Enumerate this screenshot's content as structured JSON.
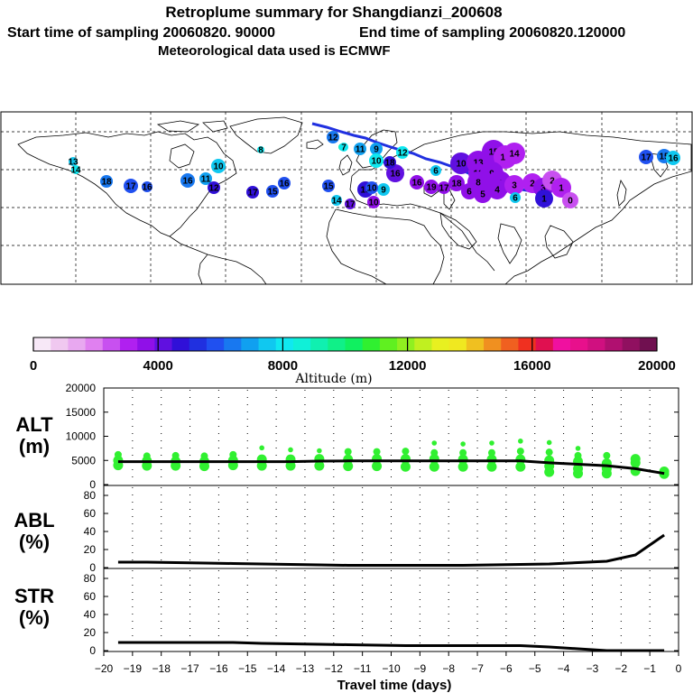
{
  "header": {
    "title": "Retroplume summary for Shangdianzi_200608",
    "start_label": "Start time of sampling 20060820. 90000",
    "end_label": "End time of sampling 20060820.120000",
    "met_label": "Meteorological data used is ECMWF"
  },
  "colorbar": {
    "colors": [
      "#f7e8f7",
      "#f0c8f0",
      "#e8a8f0",
      "#e080f0",
      "#c850f0",
      "#b020f0",
      "#9010e8",
      "#6010e0",
      "#3010d8",
      "#2030e0",
      "#2050f0",
      "#1878f0",
      "#10a0f0",
      "#10c8f0",
      "#10e8f0",
      "#10f0d8",
      "#10f0b0",
      "#10f088",
      "#10f060",
      "#30f030",
      "#60f020",
      "#90f020",
      "#c0f020",
      "#e8f020",
      "#f0e820",
      "#f0c020",
      "#f09020",
      "#f06020",
      "#f03020",
      "#e01050",
      "#f010a0",
      "#e8108c",
      "#d01080",
      "#b01070",
      "#901060",
      "#701050"
    ],
    "tick_labels": [
      "0",
      "4000",
      "8000",
      "12000",
      "16000",
      "20000"
    ],
    "title": "Altitude (m)"
  },
  "map": {
    "bubbles": [
      {
        "label": "13",
        "color": "#10c8f0"
      },
      {
        "label": "14",
        "color": "#10e8f0"
      },
      {
        "label": "18",
        "color": "#1878f0"
      },
      {
        "label": "17",
        "color": "#2050f0"
      },
      {
        "label": "16",
        "color": "#2050f0"
      },
      {
        "label": "16",
        "color": "#1878f0"
      },
      {
        "label": "11",
        "color": "#10a0f0"
      },
      {
        "label": "12",
        "color": "#3010d8"
      },
      {
        "label": "10",
        "color": "#10c8f0"
      },
      {
        "label": "8",
        "color": "#10e8f0"
      },
      {
        "label": "17",
        "color": "#3010d8"
      },
      {
        "label": "15",
        "color": "#2050f0"
      },
      {
        "label": "16",
        "color": "#2050f0"
      },
      {
        "label": "8",
        "color": "#10f0b0"
      },
      {
        "label": "12",
        "color": "#1878f0"
      },
      {
        "label": "7",
        "color": "#10e8f0"
      },
      {
        "label": "11",
        "color": "#10a0f0"
      },
      {
        "label": "9",
        "color": "#10a0f0"
      },
      {
        "label": "10",
        "color": "#10e8f0"
      },
      {
        "label": "12",
        "color": "#10e8f0"
      },
      {
        "label": "16",
        "color": "#6010e0"
      },
      {
        "label": "18",
        "color": "#3010d8"
      },
      {
        "label": "19",
        "color": "#3010d8"
      },
      {
        "label": "9",
        "color": "#10c8f0"
      },
      {
        "label": "15",
        "color": "#2050f0"
      },
      {
        "label": "14",
        "color": "#10c8f0"
      },
      {
        "label": "17",
        "color": "#6010e0"
      },
      {
        "label": "10",
        "color": "#9010e8"
      },
      {
        "label": "6",
        "color": "#10c8f0"
      },
      {
        "label": "16",
        "color": "#9010e8"
      },
      {
        "label": "19",
        "color": "#9010e8"
      },
      {
        "label": "17",
        "color": "#9010e8"
      },
      {
        "label": "18",
        "color": "#9010e8"
      },
      {
        "label": "10",
        "color": "#6010e0"
      },
      {
        "label": "13",
        "color": "#9010e8"
      },
      {
        "label": "15",
        "color": "#9010e8"
      },
      {
        "label": "16",
        "color": "#b020f0"
      },
      {
        "label": "14",
        "color": "#b020f0"
      },
      {
        "label": "12",
        "color": "#9010e8"
      },
      {
        "label": "9",
        "color": "#9010e8"
      },
      {
        "label": "7",
        "color": "#9010e8"
      },
      {
        "label": "8",
        "color": "#9010e8"
      },
      {
        "label": "6",
        "color": "#9010e8"
      },
      {
        "label": "5",
        "color": "#9010e8"
      },
      {
        "label": "4",
        "color": "#9010e8"
      },
      {
        "label": "3",
        "color": "#b020f0"
      },
      {
        "label": "2",
        "color": "#b020f0"
      },
      {
        "label": "3",
        "color": "#9010e8"
      },
      {
        "label": "1",
        "color": "#3010d8"
      },
      {
        "label": "2",
        "color": "#c850f0"
      },
      {
        "label": "1",
        "color": "#b020f0"
      },
      {
        "label": "0",
        "color": "#c850f0"
      },
      {
        "label": "6",
        "color": "#10c8f0"
      },
      {
        "label": "10",
        "color": "#2050f0"
      },
      {
        "label": "17",
        "color": "#2050f0"
      },
      {
        "label": "15",
        "color": "#1878f0"
      },
      {
        "label": "16",
        "color": "#10c8f0"
      }
    ]
  },
  "chart_data": [
    {
      "type": "scatter",
      "panel": "ALT",
      "title": "ALT",
      "ylabel": "(m)",
      "ylim": [
        0,
        20000
      ],
      "y_ticks": [
        "20000",
        "15000",
        "10000",
        "5000",
        "0"
      ],
      "xlim": [
        -20,
        0
      ],
      "marker_color": "#30f030",
      "points": [
        [
          -19.5,
          4000
        ],
        [
          -19.5,
          5000
        ],
        [
          -19.5,
          6200
        ],
        [
          -18.5,
          3900
        ],
        [
          -18.5,
          4900
        ],
        [
          -18.5,
          5900
        ],
        [
          -17.5,
          3900
        ],
        [
          -17.5,
          4800
        ],
        [
          -17.5,
          6000
        ],
        [
          -16.5,
          3800
        ],
        [
          -16.5,
          4800
        ],
        [
          -16.5,
          5900
        ],
        [
          -15.5,
          4000
        ],
        [
          -15.5,
          5000
        ],
        [
          -15.5,
          6200
        ],
        [
          -14.5,
          3900
        ],
        [
          -14.5,
          5200
        ],
        [
          -14.5,
          7600
        ],
        [
          -13.5,
          3900
        ],
        [
          -13.5,
          5200
        ],
        [
          -13.5,
          7200
        ],
        [
          -12.5,
          3900
        ],
        [
          -12.5,
          5300
        ],
        [
          -12.5,
          7000
        ],
        [
          -11.5,
          3800
        ],
        [
          -11.5,
          5200
        ],
        [
          -11.5,
          6800
        ],
        [
          -10.5,
          3800
        ],
        [
          -10.5,
          5300
        ],
        [
          -10.5,
          6800
        ],
        [
          -9.5,
          3700
        ],
        [
          -9.5,
          5300
        ],
        [
          -9.5,
          6900
        ],
        [
          -8.5,
          3700
        ],
        [
          -8.5,
          5300
        ],
        [
          -8.5,
          6600
        ],
        [
          -8.5,
          8600
        ],
        [
          -7.5,
          3700
        ],
        [
          -7.5,
          5200
        ],
        [
          -7.5,
          6600
        ],
        [
          -7.5,
          8400
        ],
        [
          -6.5,
          3700
        ],
        [
          -6.5,
          5200
        ],
        [
          -6.5,
          6600
        ],
        [
          -6.5,
          8600
        ],
        [
          -5.5,
          3700
        ],
        [
          -5.5,
          5200
        ],
        [
          -5.5,
          6900
        ],
        [
          -5.5,
          9000
        ],
        [
          -4.5,
          2600
        ],
        [
          -4.5,
          3800
        ],
        [
          -4.5,
          5000
        ],
        [
          -4.5,
          6700
        ],
        [
          -4.5,
          8700
        ],
        [
          -3.5,
          2300
        ],
        [
          -3.5,
          3300
        ],
        [
          -3.5,
          4800
        ],
        [
          -3.5,
          6000
        ],
        [
          -3.5,
          7500
        ],
        [
          -2.5,
          2300
        ],
        [
          -2.5,
          3300
        ],
        [
          -2.5,
          4400
        ],
        [
          -2.5,
          6000
        ],
        [
          -1.5,
          2800
        ],
        [
          -1.5,
          4500
        ],
        [
          -1.5,
          5300
        ],
        [
          -0.5,
          2200
        ],
        [
          -0.5,
          2700
        ]
      ],
      "line": {
        "x": [
          -19.5,
          -18.5,
          -17.5,
          -16.5,
          -15.5,
          -14.5,
          -13.5,
          -12.5,
          -11.5,
          -10.5,
          -9.5,
          -8.5,
          -7.5,
          -6.5,
          -5.5,
          -4.5,
          -3.5,
          -2.5,
          -1.5,
          -0.5
        ],
        "y": [
          4750,
          4750,
          4750,
          4750,
          4750,
          4750,
          4750,
          4850,
          4900,
          4900,
          4900,
          4900,
          4900,
          4900,
          4900,
          4500,
          4200,
          3900,
          3300,
          2300
        ]
      }
    },
    {
      "type": "line",
      "panel": "ABL",
      "title": "ABL",
      "ylabel": "(%)",
      "ylim": [
        0,
        90
      ],
      "y_ticks": [
        "80",
        "60",
        "40",
        "20",
        "0"
      ],
      "xlim": [
        -20,
        0
      ],
      "x": [
        -19.5,
        -18.5,
        -17.5,
        -16.5,
        -15.5,
        -14.5,
        -13.5,
        -12.5,
        -11.5,
        -10.5,
        -9.5,
        -8.5,
        -7.5,
        -6.5,
        -5.5,
        -4.5,
        -3.5,
        -2.5,
        -1.5,
        -0.5
      ],
      "y": [
        6,
        6,
        5.5,
        5,
        4.5,
        4,
        3.5,
        3,
        2.5,
        2.5,
        2.5,
        2.5,
        2.5,
        3,
        3.5,
        4,
        5.5,
        7,
        14,
        36
      ]
    },
    {
      "type": "line",
      "panel": "STR",
      "title": "STR",
      "ylabel": "(%)",
      "ylim": [
        0,
        90
      ],
      "y_ticks": [
        "80",
        "60",
        "40",
        "20",
        "0"
      ],
      "xlim": [
        -20,
        0
      ],
      "xlabel": "Travel time (days)",
      "x_ticks": [
        "−20",
        "−19",
        "−18",
        "−17",
        "−16",
        "−15",
        "−14",
        "−13",
        "−12",
        "−11",
        "−10",
        "−9",
        "−8",
        "−7",
        "−6",
        "−5",
        "−4",
        "−3",
        "−2",
        "−1",
        "0"
      ],
      "x": [
        -19.5,
        -18.5,
        -17.5,
        -16.5,
        -15.5,
        -14.5,
        -13.5,
        -12.5,
        -11.5,
        -10.5,
        -9.5,
        -8.5,
        -7.5,
        -6.5,
        -5.5,
        -4.5,
        -3.5,
        -2.5,
        -1.5,
        -0.5
      ],
      "y": [
        9,
        9,
        9,
        9,
        9,
        8,
        7.5,
        7,
        6.5,
        6,
        5.5,
        5.5,
        5.5,
        5.5,
        5.5,
        4,
        2,
        0,
        0,
        0
      ]
    }
  ]
}
